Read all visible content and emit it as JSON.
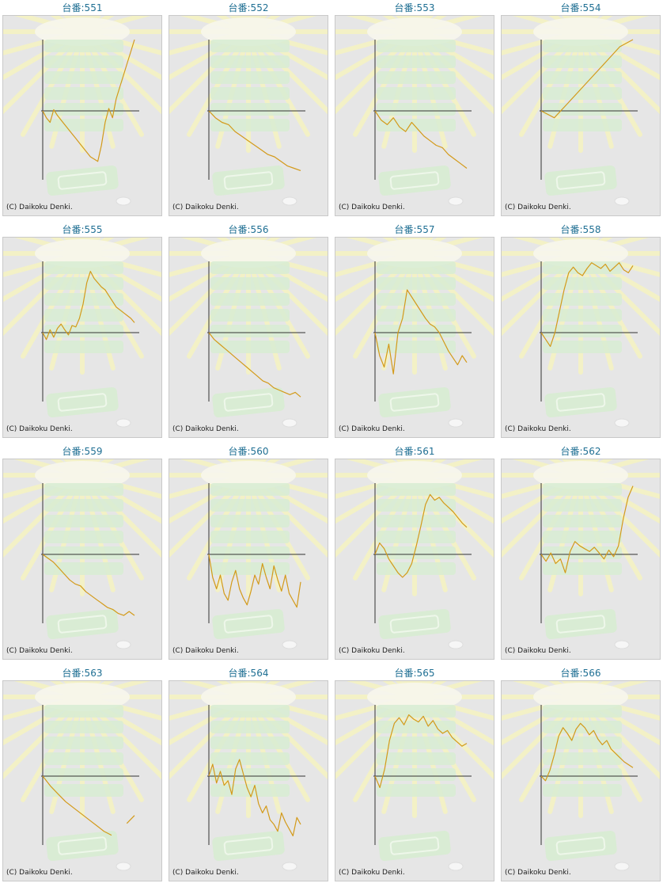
{
  "title_prefix": "台番:",
  "credit": "(C) Daikoku Denki.",
  "colors": {
    "series": "#d39a1a",
    "axis": "#333333",
    "panel_bg": "#e6e6e6",
    "panel_border": "#c9c9c9",
    "title": "#1f6f93",
    "bg_rays": "#f3f1c6",
    "bg_stack": "#d7ecd2"
  },
  "chart_data": [
    {
      "type": "line",
      "title": "台番:551",
      "x": [
        0,
        1,
        2,
        3,
        4,
        5,
        6,
        7,
        8,
        9,
        10,
        11,
        12,
        13,
        14,
        15,
        16,
        17,
        18,
        19,
        20,
        21,
        22,
        23,
        24,
        25
      ],
      "values": [
        0,
        -0.3,
        -0.5,
        0.1,
        -0.2,
        -0.4,
        -0.6,
        -0.8,
        -1.0,
        -1.2,
        -1.4,
        -1.6,
        -1.8,
        -2.0,
        -2.1,
        -2.2,
        -1.5,
        -0.5,
        0.2,
        -0.3,
        1.0,
        2.0,
        3.0,
        4.0,
        5.0,
        6.0
      ],
      "ylim": [
        -3,
        6
      ]
    },
    {
      "type": "line",
      "title": "台番:552",
      "x": [
        0,
        1,
        2,
        3,
        4,
        5,
        6,
        7,
        8,
        9,
        10,
        11,
        12,
        13,
        14
      ],
      "values": [
        0,
        -0.3,
        -0.5,
        -0.6,
        -0.9,
        -1.1,
        -1.3,
        -1.5,
        -1.7,
        -1.9,
        -2.0,
        -2.2,
        -2.4,
        -2.5,
        -2.6
      ],
      "ylim": [
        -3,
        3
      ]
    },
    {
      "type": "line",
      "title": "台番:553",
      "x": [
        0,
        1,
        2,
        3,
        4,
        5,
        6,
        7,
        8,
        9,
        10,
        11,
        12,
        13,
        14,
        15
      ],
      "values": [
        0,
        -0.4,
        -0.6,
        -0.3,
        -0.7,
        -0.9,
        -0.5,
        -0.8,
        -1.1,
        -1.3,
        -1.5,
        -1.6,
        -1.9,
        -2.1,
        -2.3,
        -2.5
      ],
      "ylim": [
        -3,
        3
      ]
    },
    {
      "type": "line",
      "title": "台番:554",
      "x": [
        0,
        1,
        2,
        3,
        4,
        5,
        6,
        7
      ],
      "values": [
        0,
        -0.3,
        0.5,
        1.5,
        2.5,
        3.5,
        4.5,
        5.0
      ],
      "ylim": [
        -3,
        5
      ]
    },
    {
      "type": "line",
      "title": "台番:555",
      "x": [
        0,
        1,
        2,
        3,
        4,
        5,
        6,
        7,
        8,
        9,
        10,
        11,
        12,
        13,
        14,
        15,
        16,
        17,
        18,
        19,
        20,
        21,
        22,
        23,
        24,
        25
      ],
      "values": [
        0,
        -0.3,
        0.2,
        -0.2,
        0.3,
        0.6,
        0.2,
        -0.1,
        0.5,
        0.4,
        1.0,
        2.0,
        3.5,
        4.3,
        3.8,
        3.5,
        3.2,
        3.0,
        2.6,
        2.2,
        1.8,
        1.6,
        1.4,
        1.2,
        1.0,
        0.7
      ],
      "ylim": [
        -3,
        5
      ]
    },
    {
      "type": "line",
      "title": "台番:556",
      "x": [
        0,
        1,
        2,
        3,
        4,
        5,
        6,
        7,
        8,
        9,
        10,
        11,
        12,
        13,
        14,
        15,
        16,
        17
      ],
      "values": [
        0,
        -0.3,
        -0.5,
        -0.7,
        -0.9,
        -1.1,
        -1.3,
        -1.5,
        -1.7,
        -1.9,
        -2.1,
        -2.2,
        -2.4,
        -2.5,
        -2.6,
        -2.7,
        -2.6,
        -2.8
      ],
      "ylim": [
        -3,
        3
      ]
    },
    {
      "type": "line",
      "title": "台番:557",
      "x": [
        0,
        1,
        2,
        3,
        4,
        5,
        6,
        7,
        8,
        9,
        10,
        11,
        12,
        13,
        14,
        15,
        16,
        17,
        18,
        19,
        20
      ],
      "values": [
        0,
        -1.0,
        -1.5,
        -0.5,
        -1.8,
        0.0,
        1.0,
        3.0,
        2.5,
        2.0,
        1.5,
        1.0,
        0.6,
        0.4,
        0.0,
        -0.4,
        -0.8,
        -1.1,
        -1.4,
        -1.0,
        -1.3
      ],
      "ylim": [
        -3,
        5
      ]
    },
    {
      "type": "line",
      "title": "台番:558",
      "x": [
        0,
        1,
        2,
        3,
        4,
        5,
        6,
        7,
        8,
        9,
        10,
        11,
        12,
        13,
        14,
        15,
        16,
        17,
        18,
        19,
        20
      ],
      "values": [
        0,
        -0.3,
        -0.6,
        0.0,
        1.5,
        3.0,
        4.2,
        4.6,
        4.2,
        4.0,
        4.5,
        4.9,
        4.7,
        4.5,
        4.8,
        4.3,
        4.6,
        4.9,
        4.4,
        4.2,
        4.7
      ],
      "ylim": [
        -3,
        5
      ]
    },
    {
      "type": "line",
      "title": "台番:559",
      "x": [
        0,
        1,
        2,
        3,
        4,
        5,
        6,
        7,
        8,
        9,
        10,
        11,
        12,
        13,
        14,
        15,
        16,
        17
      ],
      "values": [
        0,
        -0.2,
        -0.4,
        -0.7,
        -1.0,
        -1.3,
        -1.5,
        -1.6,
        -1.9,
        -2.1,
        -2.3,
        -2.5,
        -2.7,
        -2.8,
        -3.0,
        -3.1,
        -2.9,
        -3.1
      ],
      "ylim": [
        -3.5,
        3
      ]
    },
    {
      "type": "line",
      "title": "台番:560",
      "x": [
        0,
        1,
        2,
        3,
        4,
        5,
        6,
        7,
        8,
        9,
        10,
        11,
        12,
        13,
        14,
        15,
        16,
        17,
        18,
        19,
        20,
        21,
        22,
        23,
        24
      ],
      "values": [
        0,
        -1.0,
        -1.5,
        -0.9,
        -1.7,
        -2.0,
        -1.2,
        -0.7,
        -1.5,
        -1.9,
        -2.2,
        -1.6,
        -0.9,
        -1.3,
        -0.4,
        -1.0,
        -1.5,
        -0.5,
        -1.1,
        -1.6,
        -0.9,
        -1.7,
        -2.0,
        -2.3,
        -1.2
      ],
      "ylim": [
        -3,
        3
      ]
    },
    {
      "type": "line",
      "title": "台番:561",
      "x": [
        0,
        1,
        2,
        3,
        4,
        5,
        6,
        7,
        8,
        9,
        10,
        11,
        12,
        13,
        14,
        15,
        16,
        17,
        18,
        19,
        20
      ],
      "values": [
        0,
        0.8,
        0.4,
        -0.2,
        -0.5,
        -0.8,
        -1.0,
        -0.8,
        -0.4,
        0.6,
        2.0,
        3.5,
        4.2,
        3.8,
        4.0,
        3.6,
        3.3,
        3.0,
        2.6,
        2.2,
        1.9
      ],
      "ylim": [
        -3,
        5
      ]
    },
    {
      "type": "line",
      "title": "台番:562",
      "x": [
        0,
        1,
        2,
        3,
        4,
        5,
        6,
        7,
        8,
        9,
        10,
        11,
        12,
        13,
        14,
        15,
        16,
        17,
        18,
        19
      ],
      "values": [
        0,
        -0.3,
        0.1,
        -0.4,
        -0.2,
        -0.8,
        0.2,
        0.9,
        0.6,
        0.4,
        0.2,
        0.5,
        0.1,
        -0.2,
        0.3,
        -0.1,
        0.6,
        2.5,
        4.0,
        4.8
      ],
      "ylim": [
        -3,
        5
      ]
    },
    {
      "type": "line",
      "title": "台番:563",
      "x": [
        0,
        1,
        2,
        3,
        4,
        5,
        6,
        7,
        8,
        9,
        10,
        11,
        12
      ],
      "values": [
        0,
        -0.5,
        -0.9,
        -1.3,
        -1.6,
        -1.9,
        -2.2,
        -2.5,
        -2.8,
        -3.0,
        null,
        -2.4,
        -2.0
      ],
      "ylim": [
        -3.5,
        3
      ]
    },
    {
      "type": "line",
      "title": "台番:564",
      "x": [
        0,
        1,
        2,
        3,
        4,
        5,
        6,
        7,
        8,
        9,
        10,
        11,
        12,
        13,
        14,
        15,
        16,
        17,
        18,
        19,
        20,
        21,
        22,
        23,
        24
      ],
      "values": [
        0,
        0.5,
        -0.3,
        0.2,
        -0.4,
        -0.2,
        -0.8,
        0.3,
        0.7,
        0.1,
        -0.5,
        -0.9,
        -0.4,
        -1.2,
        -1.6,
        -1.3,
        -1.9,
        -2.1,
        -2.4,
        -1.6,
        -2.0,
        -2.3,
        -2.6,
        -1.8,
        -2.1
      ],
      "ylim": [
        -3,
        3
      ]
    },
    {
      "type": "line",
      "title": "台番:565",
      "x": [
        0,
        1,
        2,
        3,
        4,
        5,
        6,
        7,
        8,
        9,
        10,
        11,
        12,
        13,
        14,
        15,
        16,
        17,
        18,
        19
      ],
      "values": [
        0,
        -0.5,
        0.5,
        2.5,
        3.7,
        4.1,
        3.6,
        4.3,
        4.0,
        3.8,
        4.2,
        3.5,
        3.9,
        3.3,
        3.0,
        3.2,
        2.7,
        2.4,
        2.1,
        2.3
      ],
      "ylim": [
        -3,
        5
      ]
    },
    {
      "type": "line",
      "title": "台番:566",
      "x": [
        0,
        1,
        2,
        3,
        4,
        5,
        6,
        7,
        8,
        9,
        10,
        11,
        12,
        13,
        14,
        15,
        16,
        17,
        18,
        19,
        20,
        21
      ],
      "values": [
        0,
        -0.2,
        0.4,
        1.5,
        2.8,
        3.4,
        3.0,
        2.5,
        3.3,
        3.7,
        3.4,
        2.9,
        3.2,
        2.6,
        2.2,
        2.5,
        1.9,
        1.6,
        1.3,
        1.0,
        0.8,
        0.6
      ],
      "ylim": [
        -3,
        5
      ]
    }
  ]
}
